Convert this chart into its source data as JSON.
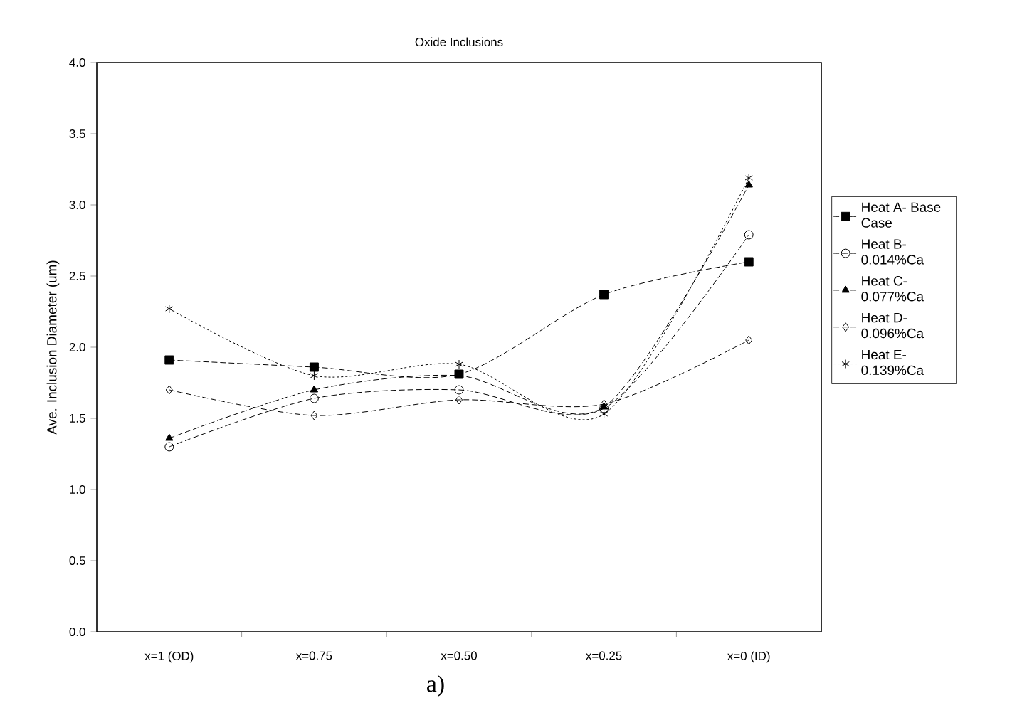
{
  "chart_data": {
    "type": "line",
    "title": "Oxide Inclusions",
    "ylabel": "Ave. Inclusion Diameter (um)",
    "categories": [
      "x=1 (OD)",
      "x=0.75",
      "x=0.50",
      "x=0.25",
      "x=0 (ID)"
    ],
    "series": [
      {
        "name": "Heat A- Base Case",
        "color": "#000000",
        "marker": "square",
        "line_style": "dashed",
        "values": [
          1.91,
          1.86,
          1.81,
          2.37,
          2.6
        ]
      },
      {
        "name": "Heat B- 0.014%Ca",
        "color": "#000000",
        "marker": "circle",
        "line_style": "dashed",
        "values": [
          1.3,
          1.64,
          1.7,
          1.57,
          2.79
        ]
      },
      {
        "name": "Heat C- 0.077%Ca",
        "color": "#000000",
        "marker": "triangle",
        "line_style": "dashed",
        "values": [
          1.36,
          1.7,
          1.8,
          1.58,
          3.14
        ]
      },
      {
        "name": "Heat D- 0.096%Ca",
        "color": "#000000",
        "marker": "diamond",
        "line_style": "dashed",
        "values": [
          1.7,
          1.52,
          1.63,
          1.6,
          2.05
        ]
      },
      {
        "name": "Heat E- 0.139%Ca",
        "color": "#000000",
        "marker": "cross",
        "line_style": "dotted",
        "values": [
          2.27,
          1.8,
          1.88,
          1.53,
          3.19
        ]
      }
    ],
    "ylim": [
      0,
      4
    ],
    "yticks": [
      {
        "value": 0,
        "label": "0.0"
      },
      {
        "value": 0.5,
        "label": "0.5"
      },
      {
        "value": 1,
        "label": "1.0"
      },
      {
        "value": 1.5,
        "label": "1.5"
      },
      {
        "value": 2,
        "label": "2.0"
      },
      {
        "value": 2.5,
        "label": "2.5"
      },
      {
        "value": 3,
        "label": "3.0"
      },
      {
        "value": 3.5,
        "label": "3.5"
      },
      {
        "value": 4,
        "label": "4.0"
      }
    ],
    "grid": false,
    "legend": "right",
    "annotations": [
      "a)"
    ]
  }
}
